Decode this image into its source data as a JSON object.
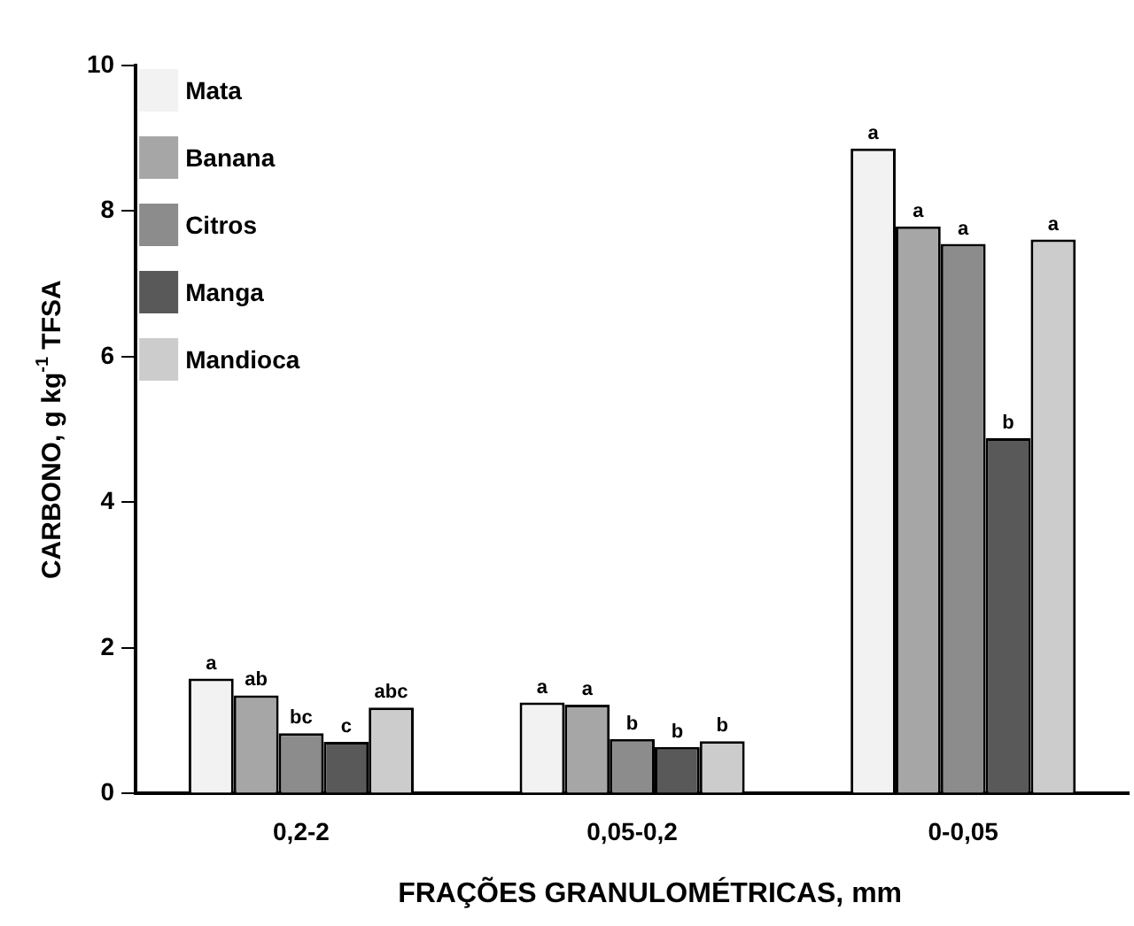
{
  "chart_data": {
    "type": "bar",
    "xlabel": "FRAÇÕES GRANULOMÉTRICAS, mm",
    "ylabel": "CARBONO, g kg$^{-1}$ TFSA",
    "categories": [
      "0,2-2",
      "0,05-0,2",
      "0-0,05"
    ],
    "series": [
      {
        "name": "Mata",
        "color": "#f2f2f2",
        "values": [
          1.58,
          1.25,
          8.86
        ],
        "value_labels": [
          "a",
          "a",
          "a"
        ]
      },
      {
        "name": "Banana",
        "color": "#a6a6a6",
        "values": [
          1.35,
          1.22,
          7.79
        ],
        "value_labels": [
          "ab",
          "a",
          "a"
        ]
      },
      {
        "name": "Citros",
        "color": "#8c8c8c",
        "values": [
          0.83,
          0.75,
          7.55
        ],
        "value_labels": [
          "bc",
          "b",
          "a"
        ]
      },
      {
        "name": "Manga",
        "color": "#595959",
        "values": [
          0.71,
          0.64,
          4.88
        ],
        "value_labels": [
          "c",
          "b",
          "b"
        ]
      },
      {
        "name": "Mandioca",
        "color": "#cccccc",
        "values": [
          1.18,
          0.72,
          7.61
        ],
        "value_labels": [
          "abc",
          "b",
          "a"
        ]
      }
    ],
    "ylim": [
      0,
      10
    ],
    "yticks": [
      0,
      2,
      4,
      6,
      8,
      10
    ],
    "grid": false,
    "legend": "top left"
  }
}
